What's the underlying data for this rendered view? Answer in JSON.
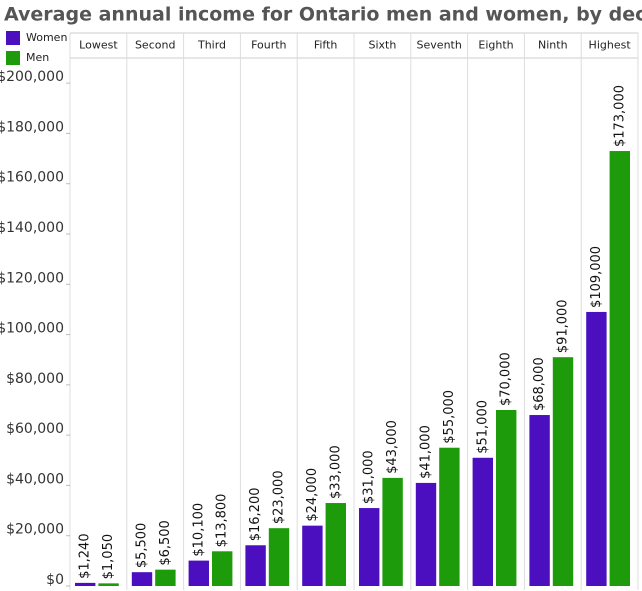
{
  "chart_data": {
    "type": "bar",
    "title": "Average annual income for Ontario men and women, by decile",
    "categories": [
      "Lowest",
      "Second",
      "Third",
      "Fourth",
      "Fifth",
      "Sixth",
      "Seventh",
      "Eighth",
      "Ninth",
      "Highest"
    ],
    "series": [
      {
        "name": "Women",
        "color": "#4b0fbf",
        "values": [
          1240,
          5500,
          10100,
          16200,
          24000,
          31000,
          41000,
          51000,
          68000,
          109000
        ],
        "value_labels": [
          "$1,240",
          "$5,500",
          "$10,100",
          "$16,200",
          "$24,000",
          "$31,000",
          "$41,000",
          "$51,000",
          "$68,000",
          "$109,000"
        ]
      },
      {
        "name": "Men",
        "color": "#1e9b0b",
        "values": [
          1050,
          6500,
          13800,
          23000,
          33000,
          43000,
          55000,
          70000,
          91000,
          173000
        ],
        "value_labels": [
          "$1,050",
          "$6,500",
          "$13,800",
          "$23,000",
          "$33,000",
          "$43,000",
          "$55,000",
          "$70,000",
          "$91,000",
          "$173,000"
        ]
      }
    ],
    "ylim": [
      0,
      210000
    ],
    "yticks": [
      {
        "value": 0,
        "label": "$0"
      },
      {
        "value": 20000,
        "label": "$20,000"
      },
      {
        "value": 40000,
        "label": "$40,000"
      },
      {
        "value": 60000,
        "label": "$60,000"
      },
      {
        "value": 80000,
        "label": "$80,000"
      },
      {
        "value": 100000,
        "label": "$100,000"
      },
      {
        "value": 120000,
        "label": "$120,000"
      },
      {
        "value": 140000,
        "label": "$140,000"
      },
      {
        "value": 160000,
        "label": "$160,000"
      },
      {
        "value": 180000,
        "label": "$180,000"
      },
      {
        "value": 200000,
        "label": "$200,000"
      }
    ]
  }
}
